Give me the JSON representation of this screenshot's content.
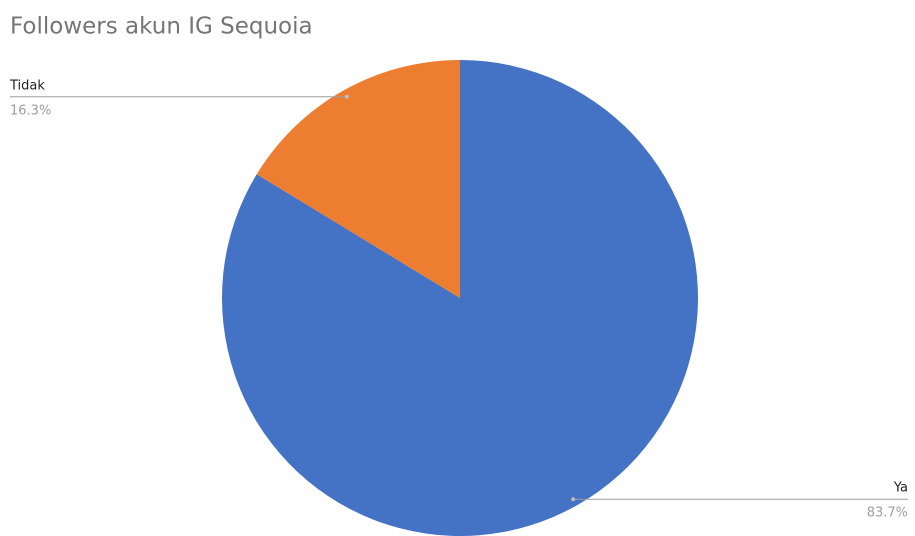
{
  "chart_data": {
    "type": "pie",
    "title": "Followers akun IG Sequoia",
    "categories": [
      "Ya",
      "Tidak"
    ],
    "values": [
      83.7,
      16.3
    ],
    "value_labels": [
      "83.7%",
      "16.3%"
    ],
    "colors": [
      "#4472c4",
      "#ed7d31"
    ]
  }
}
